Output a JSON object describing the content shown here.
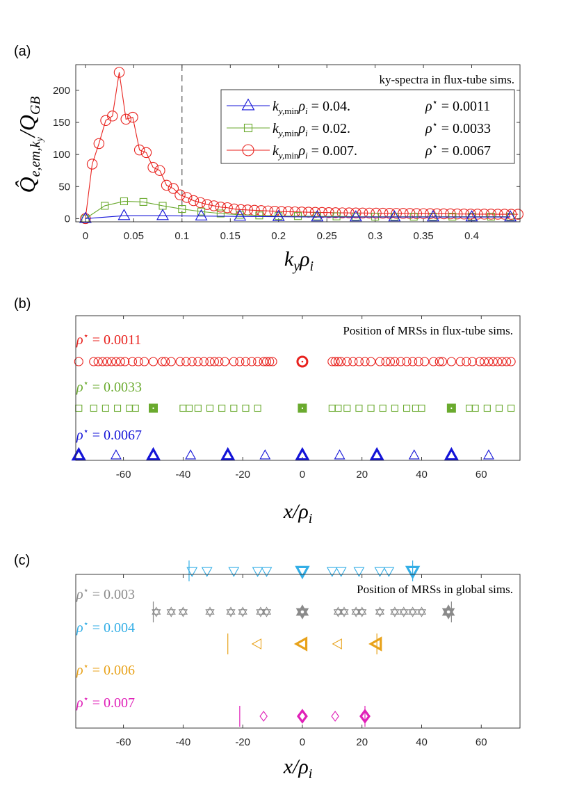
{
  "chart_data": [
    {
      "panel_label": "(a)",
      "type": "line",
      "title": "ky-spectra in flux-tube sims.",
      "xlabel": "k_y ρ_i",
      "ylabel": "Q̂_{e,em,k_y} / Q_{GB}",
      "xlim": [
        -0.01,
        0.45
      ],
      "ylim": [
        -5,
        240
      ],
      "xticks": [
        "0",
        "0.05",
        "0.1",
        "0.15",
        "0.2",
        "0.25",
        "0.3",
        "0.35",
        "0.4"
      ],
      "yticks": [
        "0",
        "50",
        "100",
        "150",
        "200"
      ],
      "vline_x": 0.1,
      "series": [
        {
          "name": "k_{y,min}ρ_i = 0.04.   ρ* = 0.0011",
          "legend_tex": "k_{y,min}ρ_i = 0.04.",
          "legend_rho": "ρ* = 0.0011",
          "color": "#1414d8",
          "marker": "triangle",
          "x": [
            0,
            0.04,
            0.08,
            0.12,
            0.16,
            0.2,
            0.24,
            0.28,
            0.32,
            0.36,
            0.4,
            0.44
          ],
          "y": [
            0,
            4.5,
            4.5,
            4,
            3.5,
            3,
            2.5,
            2.5,
            2.5,
            2.5,
            2.5,
            2.5
          ]
        },
        {
          "name": "k_{y,min}ρ_i = 0.02.   ρ* = 0.0033",
          "legend_tex": "k_{y,min}ρ_i = 0.02.",
          "legend_rho": "ρ* = 0.0033",
          "color": "#6aaa2e",
          "marker": "square",
          "x": [
            0,
            0.02,
            0.04,
            0.06,
            0.08,
            0.1,
            0.12,
            0.14,
            0.16,
            0.18,
            0.2,
            0.22,
            0.24,
            0.26,
            0.28,
            0.3,
            0.32,
            0.34,
            0.36,
            0.38,
            0.4,
            0.42,
            0.44
          ],
          "y": [
            0,
            20,
            27,
            26,
            20,
            15,
            11,
            8,
            6,
            5,
            4,
            4,
            3.5,
            3.5,
            3,
            3,
            3,
            3,
            3,
            3,
            3,
            3,
            3
          ]
        },
        {
          "name": "k_{y,min}ρ_i = 0.007.   ρ* = 0.0067",
          "legend_tex": "k_{y,min}ρ_i = 0.007.",
          "legend_rho": "ρ* = 0.0067",
          "color": "#e8221e",
          "marker": "circle",
          "x": [
            0,
            0.007,
            0.014,
            0.021,
            0.028,
            0.035,
            0.042,
            0.049,
            0.056,
            0.063,
            0.07,
            0.077,
            0.084,
            0.091,
            0.098,
            0.105,
            0.112,
            0.119,
            0.126,
            0.133,
            0.14,
            0.147,
            0.154,
            0.161,
            0.168,
            0.175,
            0.182,
            0.189,
            0.196,
            0.203,
            0.21,
            0.217,
            0.224,
            0.231,
            0.238,
            0.245,
            0.252,
            0.259,
            0.266,
            0.273,
            0.28,
            0.287,
            0.294,
            0.301,
            0.308,
            0.315,
            0.322,
            0.329,
            0.336,
            0.343,
            0.35,
            0.357,
            0.364,
            0.371,
            0.378,
            0.385,
            0.392,
            0.399,
            0.406,
            0.413,
            0.42,
            0.427,
            0.434,
            0.441,
            0.448
          ],
          "y": [
            0,
            85,
            117,
            153,
            160,
            228,
            155,
            158,
            107,
            103,
            80,
            75,
            52,
            47,
            37,
            33,
            28,
            25,
            22,
            20,
            18,
            17,
            15,
            14,
            13.5,
            13,
            12.5,
            12,
            11.5,
            11,
            10.8,
            10.5,
            10.3,
            10,
            9.8,
            9.6,
            9.4,
            9.2,
            9,
            8.9,
            8.8,
            8.7,
            8.6,
            8.5,
            8.4,
            8.3,
            8.2,
            8.1,
            8,
            7.9,
            7.8,
            7.7,
            7.6,
            7.5,
            7.4,
            7.3,
            7.2,
            7.1,
            7,
            7,
            7,
            6.9,
            6.9,
            6.8,
            6.8
          ]
        }
      ]
    },
    {
      "panel_label": "(b)",
      "type": "scatter",
      "title": "Position of MRSs in flux-tube sims.",
      "xlabel": "x / ρ_i",
      "xlim": [
        -76,
        73
      ],
      "xticks": [
        -60,
        -40,
        -20,
        0,
        20,
        40,
        60
      ],
      "rows": [
        {
          "label": "ρ* = 0.0011",
          "color": "#e8221e",
          "marker": "circle",
          "x": [
            -75,
            -70,
            -68.5,
            -67,
            -65.5,
            -64,
            -62.5,
            -61,
            -59.5,
            -57,
            -55,
            -53,
            -50,
            -47,
            -46,
            -44,
            -41,
            -39,
            -37,
            -35,
            -33,
            -31,
            -29.5,
            -28,
            -26,
            -23,
            -21,
            -19,
            -17,
            -15,
            -13,
            -12,
            -11,
            -10,
            10,
            11,
            12,
            13,
            15,
            17,
            19,
            21,
            23,
            26,
            28,
            29.5,
            31,
            33,
            35,
            37,
            39,
            41,
            44,
            46,
            47,
            50,
            53,
            55,
            57,
            59.5,
            61,
            62.5,
            64,
            65.5,
            67,
            68.5,
            70
          ],
          "highlight": [
            0
          ]
        },
        {
          "label": "ρ* = 0.0033",
          "color": "#6aaa2e",
          "marker": "square",
          "x": [
            -75,
            -70,
            -66,
            -62,
            -58,
            -56,
            -40,
            -38,
            -35,
            -31,
            -27,
            -23,
            -19,
            -15,
            10,
            12,
            15,
            19,
            23,
            27,
            31,
            35,
            38,
            40,
            56,
            58,
            62,
            66,
            70
          ],
          "highlight": [
            -50,
            0,
            50
          ]
        },
        {
          "label": "ρ* = 0.0067",
          "color": "#1414d8",
          "marker": "triangle",
          "x": [
            -62.5,
            -37.5,
            -12.5,
            12.5,
            37.5,
            62.5
          ],
          "highlight": [
            -75,
            -50,
            -25,
            0,
            25,
            50
          ]
        }
      ]
    },
    {
      "panel_label": "(c)",
      "type": "scatter",
      "title": "Position of MRSs in global sims.",
      "xlabel": "x / ρ_i",
      "xlim": [
        -76,
        73
      ],
      "xticks": [
        -60,
        -40,
        -20,
        0,
        20,
        40,
        60
      ],
      "rows": [
        {
          "label": "ρ* = 0.003",
          "color": "#8a8a8a",
          "marker": "star",
          "x": [
            -49,
            -44,
            -40,
            -31,
            -24,
            -20,
            -14,
            -12,
            12,
            14,
            18,
            20,
            26,
            31,
            34,
            37,
            40
          ],
          "highlight": [
            0,
            49
          ],
          "bounds": [
            -50,
            50
          ]
        },
        {
          "label": "ρ* = 0.004",
          "color": "#33aee6",
          "marker": "tri-down",
          "x": [
            -37,
            -32,
            -23,
            -15,
            -12,
            10,
            13,
            19,
            26,
            29
          ],
          "highlight": [
            0,
            37
          ],
          "bounds": [
            -38,
            37
          ]
        },
        {
          "label": "ρ* = 0.006",
          "color": "#e8a21a",
          "marker": "tri-left",
          "x": [
            -15,
            12
          ],
          "highlight": [
            0,
            25
          ],
          "bounds": [
            -25,
            25
          ]
        },
        {
          "label": "ρ* = 0.007",
          "color": "#e020b8",
          "marker": "diamond",
          "x": [
            -13,
            11
          ],
          "highlight": [
            0,
            21
          ],
          "bounds": [
            -21,
            21
          ]
        }
      ]
    }
  ]
}
